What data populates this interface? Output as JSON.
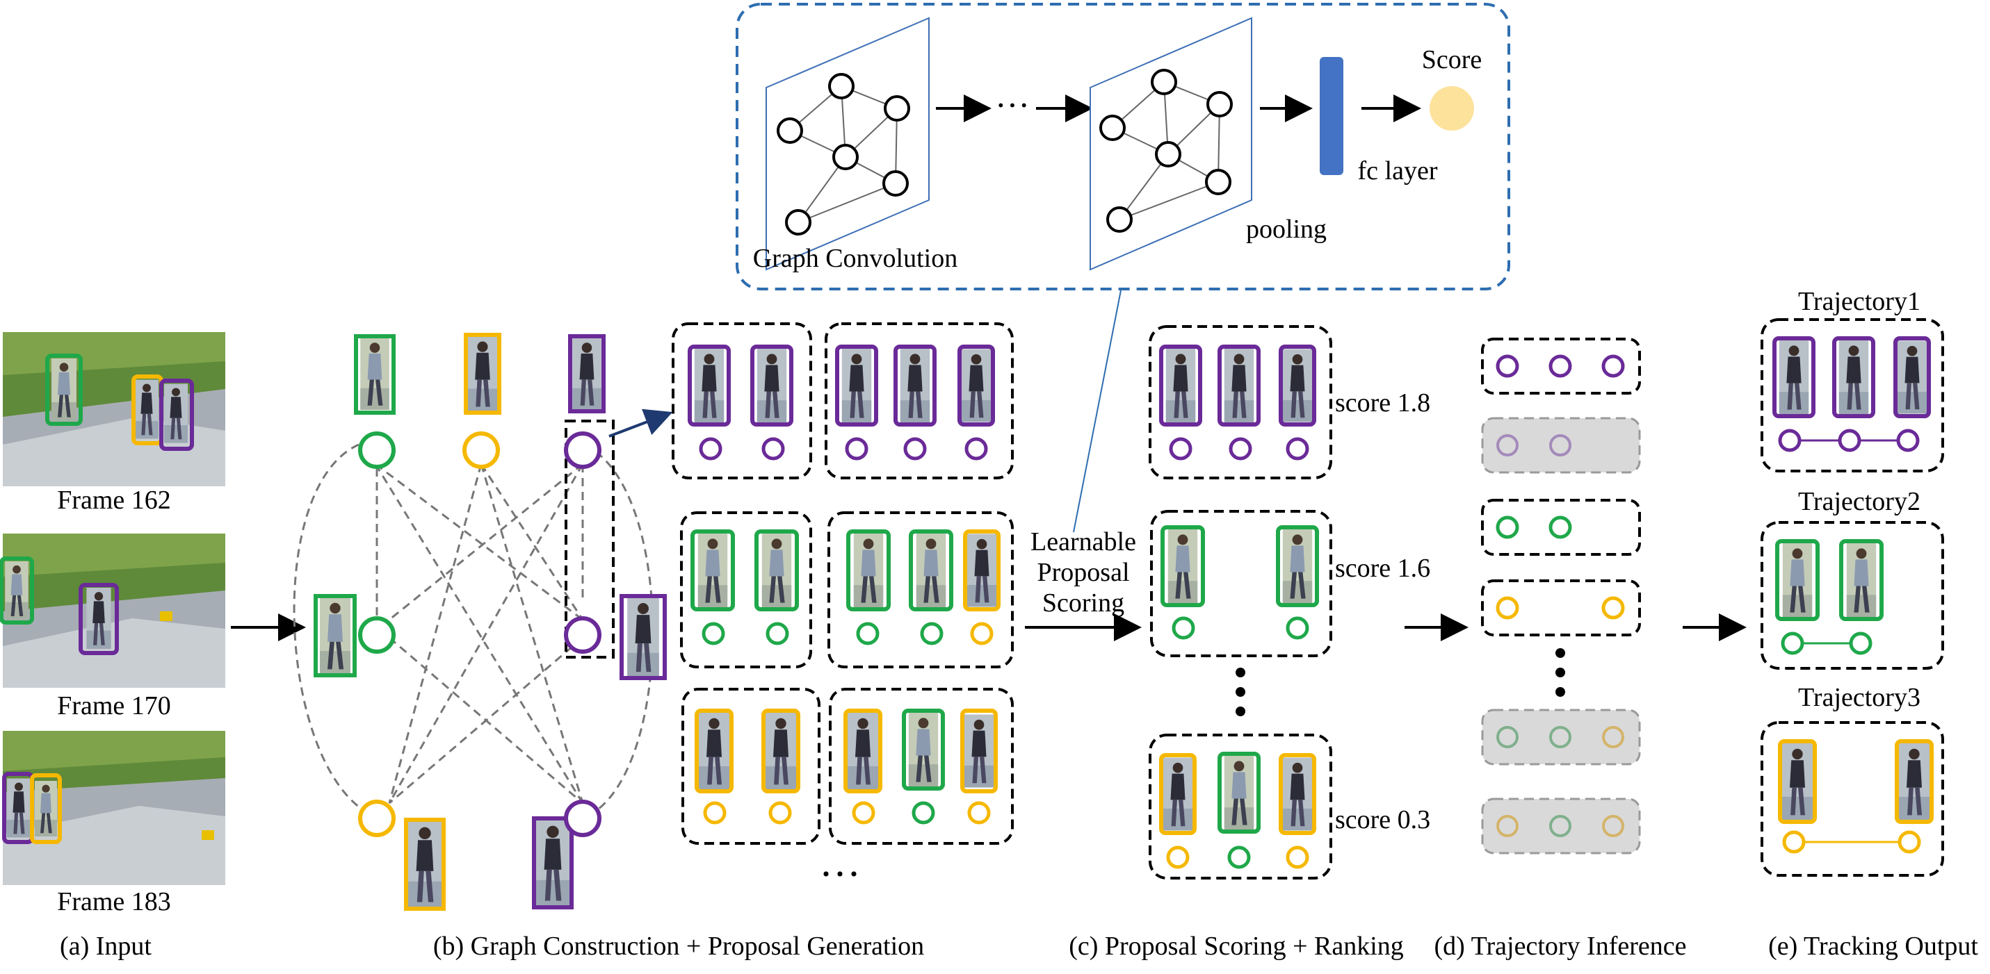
{
  "colors": {
    "green": "#1fa84a",
    "yellow": "#f5b800",
    "purple": "#6a2a98",
    "blue_dashed": "#2e6db0",
    "fc_layer": "#4472c4",
    "score_circle": "#fde29b",
    "gray_fill": "#d9d9d9"
  },
  "input": {
    "frames": [
      "Frame 162",
      "Frame 170",
      "Frame 183"
    ]
  },
  "top_panel": {
    "graph_convolution_label": "Graph Convolution",
    "pooling_label": "pooling",
    "fc_label": "fc layer",
    "score_label": "Score",
    "ellipsis": "···"
  },
  "scoring": {
    "learnable_label": [
      "Learnable",
      "Proposal",
      "Scoring"
    ],
    "scores": [
      "score 1.8",
      "score 1.6",
      "score 0.3"
    ]
  },
  "output": {
    "trajectories": [
      "Trajectory1",
      "Trajectory2",
      "Trajectory3"
    ]
  },
  "captions": {
    "a": "(a) Input",
    "b": "(b) Graph Construction + Proposal Generation",
    "c": "(c) Proposal Scoring + Ranking",
    "d": "(d) Trajectory Inference",
    "e": "(e) Tracking Output"
  },
  "misc": {
    "proposal_ellipsis": "···"
  }
}
